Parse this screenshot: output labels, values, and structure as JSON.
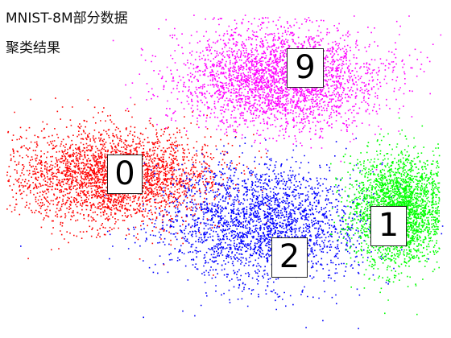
{
  "header": {
    "title_line1": "MNIST-8M部分数据",
    "title_line2": "聚类结果"
  },
  "chart_data": {
    "type": "scatter",
    "title": "MNIST-8M部分数据 聚类结果",
    "xlabel": "",
    "ylabel": "",
    "axes_visible": false,
    "grid": false,
    "legend": "none",
    "clusters": [
      {
        "label": "0",
        "color": "#ff0000",
        "center": [
          0.27,
          0.52
        ],
        "spread": [
          0.17,
          0.11
        ]
      },
      {
        "label": "9",
        "color": "#ff00ff",
        "center": [
          0.62,
          0.23
        ],
        "spread": [
          0.18,
          0.12
        ]
      },
      {
        "label": "2",
        "color": "#0000ff",
        "center": [
          0.58,
          0.66
        ],
        "spread": [
          0.18,
          0.14
        ]
      },
      {
        "label": "1",
        "color": "#00ff00",
        "center": [
          0.88,
          0.62
        ],
        "spread": [
          0.08,
          0.13
        ]
      }
    ]
  }
}
